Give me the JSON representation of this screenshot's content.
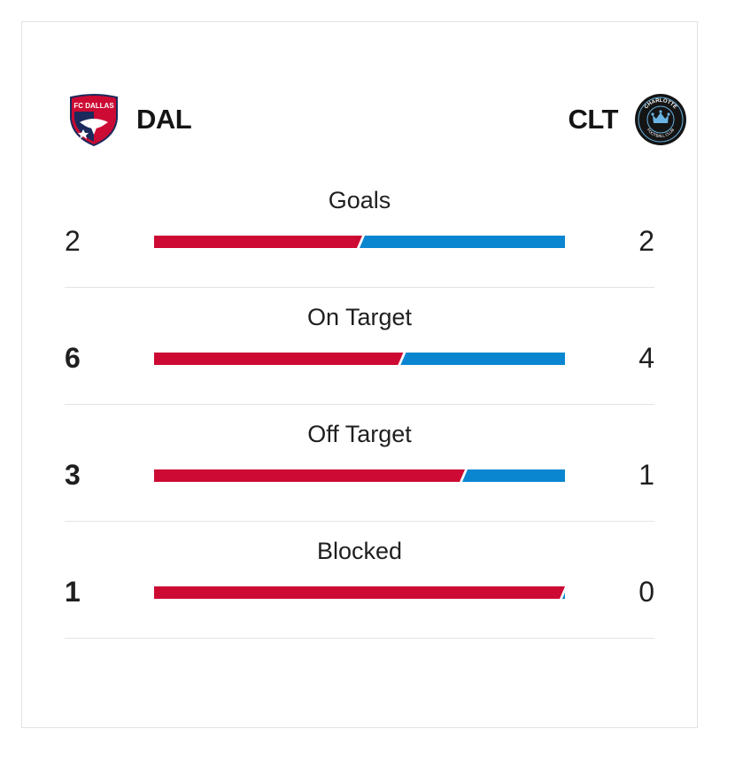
{
  "teams": {
    "home": {
      "abbr": "DAL",
      "crest_text": "FC DALLAS",
      "color": "#cc0a33"
    },
    "away": {
      "abbr": "CLT",
      "crest_text": "CHARLOTTE FOOTBALL CLUB",
      "color": "#0a86d1"
    }
  },
  "stats": [
    {
      "label": "Goals",
      "home": "2",
      "away": "2",
      "home_value": 2,
      "away_value": 2
    },
    {
      "label": "On Target",
      "home": "6",
      "away": "4",
      "home_value": 6,
      "away_value": 4
    },
    {
      "label": "Off Target",
      "home": "3",
      "away": "1",
      "home_value": 3,
      "away_value": 1
    },
    {
      "label": "Blocked",
      "home": "1",
      "away": "0",
      "home_value": 1,
      "away_value": 0
    }
  ]
}
